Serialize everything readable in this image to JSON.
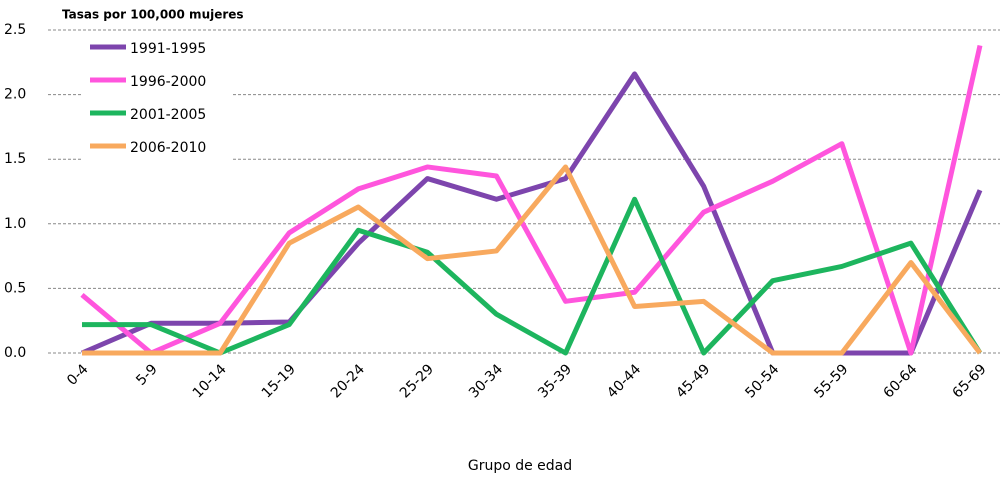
{
  "chart_data": {
    "type": "line",
    "title": "Tasas por 100,000 mujeres",
    "x_label": "Grupo de edad",
    "categories": [
      "0-4",
      "5-9",
      "10-14",
      "15-19",
      "20-24",
      "25-29",
      "30-34",
      "35-39",
      "40-44",
      "45-49",
      "50-54",
      "55-59",
      "60-64",
      "65-69"
    ],
    "series": [
      {
        "name": "1991-1995",
        "color": "#7d45ad",
        "values": [
          0,
          0.23,
          0.23,
          0.24,
          0.85,
          1.35,
          1.19,
          1.35,
          2.16,
          1.29,
          0,
          0,
          0,
          1.26
        ]
      },
      {
        "name": "1996-2000",
        "color": "#ff55dd",
        "values": [
          0.45,
          0,
          0.23,
          0.93,
          1.27,
          1.44,
          1.37,
          0.4,
          0.47,
          1.09,
          1.33,
          1.62,
          0,
          2.38
        ]
      },
      {
        "name": "2001-2005",
        "color": "#1db55e",
        "values": [
          0.22,
          0.22,
          0,
          0.22,
          0.95,
          0.78,
          0.3,
          0,
          1.19,
          0,
          0.56,
          0.67,
          0.85,
          0
        ]
      },
      {
        "name": "2006-2010",
        "color": "#f8a95e",
        "values": [
          0,
          0,
          0,
          0.85,
          1.13,
          0.73,
          0.79,
          1.44,
          0.36,
          0.4,
          0,
          0,
          0.7,
          0
        ]
      }
    ],
    "ylim": [
      0,
      2.5
    ],
    "yticks": [
      {
        "value": 0,
        "label": "0.0"
      },
      0.5,
      {
        "value": 1,
        "label": "1.0"
      },
      1.5,
      {
        "value": 2,
        "label": "2.0"
      },
      2.5
    ],
    "grid": true,
    "legend": "upper left"
  }
}
